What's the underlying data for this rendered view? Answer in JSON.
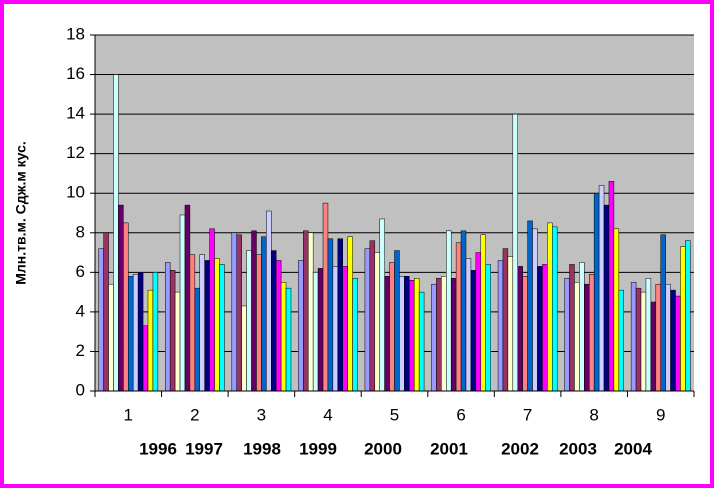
{
  "chart_data": {
    "type": "bar",
    "y_label": "Млн.тв.м. Сдж.м кус.",
    "categories": [
      "1",
      "2",
      "3",
      "4",
      "5",
      "6",
      "7",
      "8",
      "9"
    ],
    "year_labels": [
      "1996",
      "1997",
      "1998",
      "1999",
      "2000",
      "2001",
      "2002",
      "2003",
      "2004"
    ],
    "ylim": [
      0,
      18
    ],
    "yticks": [
      0,
      2,
      4,
      6,
      8,
      10,
      12,
      14,
      16,
      18
    ],
    "grid": true,
    "series": [
      {
        "color": "#9999ff",
        "values": [
          7.2,
          6.5,
          8.0,
          6.6,
          7.2,
          5.4,
          6.6,
          5.7,
          5.5
        ]
      },
      {
        "color": "#993366",
        "values": [
          8.0,
          6.1,
          7.9,
          8.1,
          7.6,
          5.7,
          7.2,
          6.4,
          5.2
        ]
      },
      {
        "color": "#ffffcc",
        "values": [
          5.4,
          5.0,
          4.3,
          8.0,
          7.0,
          5.8,
          6.8,
          5.5,
          5.0
        ]
      },
      {
        "color": "#ccffff",
        "values": [
          16.0,
          8.9,
          7.1,
          6.0,
          8.7,
          8.1,
          14.0,
          6.5,
          5.7
        ]
      },
      {
        "color": "#660066",
        "values": [
          9.4,
          9.4,
          8.1,
          6.2,
          5.8,
          5.7,
          6.3,
          5.4,
          4.5
        ]
      },
      {
        "color": "#ff8080",
        "values": [
          8.5,
          6.9,
          6.9,
          9.5,
          6.5,
          7.5,
          5.8,
          5.9,
          5.4
        ]
      },
      {
        "color": "#0066cc",
        "values": [
          5.8,
          5.2,
          7.8,
          7.7,
          7.1,
          8.1,
          8.6,
          10.0,
          7.9
        ]
      },
      {
        "color": "#ccccff",
        "values": [
          5.9,
          6.9,
          9.1,
          6.3,
          5.8,
          6.7,
          8.2,
          10.4,
          5.4
        ]
      },
      {
        "color": "#000080",
        "values": [
          6.0,
          6.6,
          7.1,
          7.7,
          5.8,
          6.1,
          6.3,
          9.4,
          5.1
        ]
      },
      {
        "color": "#ff00ff",
        "values": [
          3.3,
          8.2,
          6.6,
          6.3,
          5.6,
          7.0,
          6.4,
          10.6,
          4.8
        ]
      },
      {
        "color": "#ffff00",
        "values": [
          5.1,
          6.7,
          5.5,
          7.8,
          5.7,
          7.9,
          8.5,
          8.2,
          7.3
        ]
      },
      {
        "color": "#00ffff",
        "values": [
          6.0,
          6.4,
          5.2,
          5.7,
          5.0,
          6.4,
          8.3,
          5.1,
          7.6
        ]
      }
    ]
  }
}
